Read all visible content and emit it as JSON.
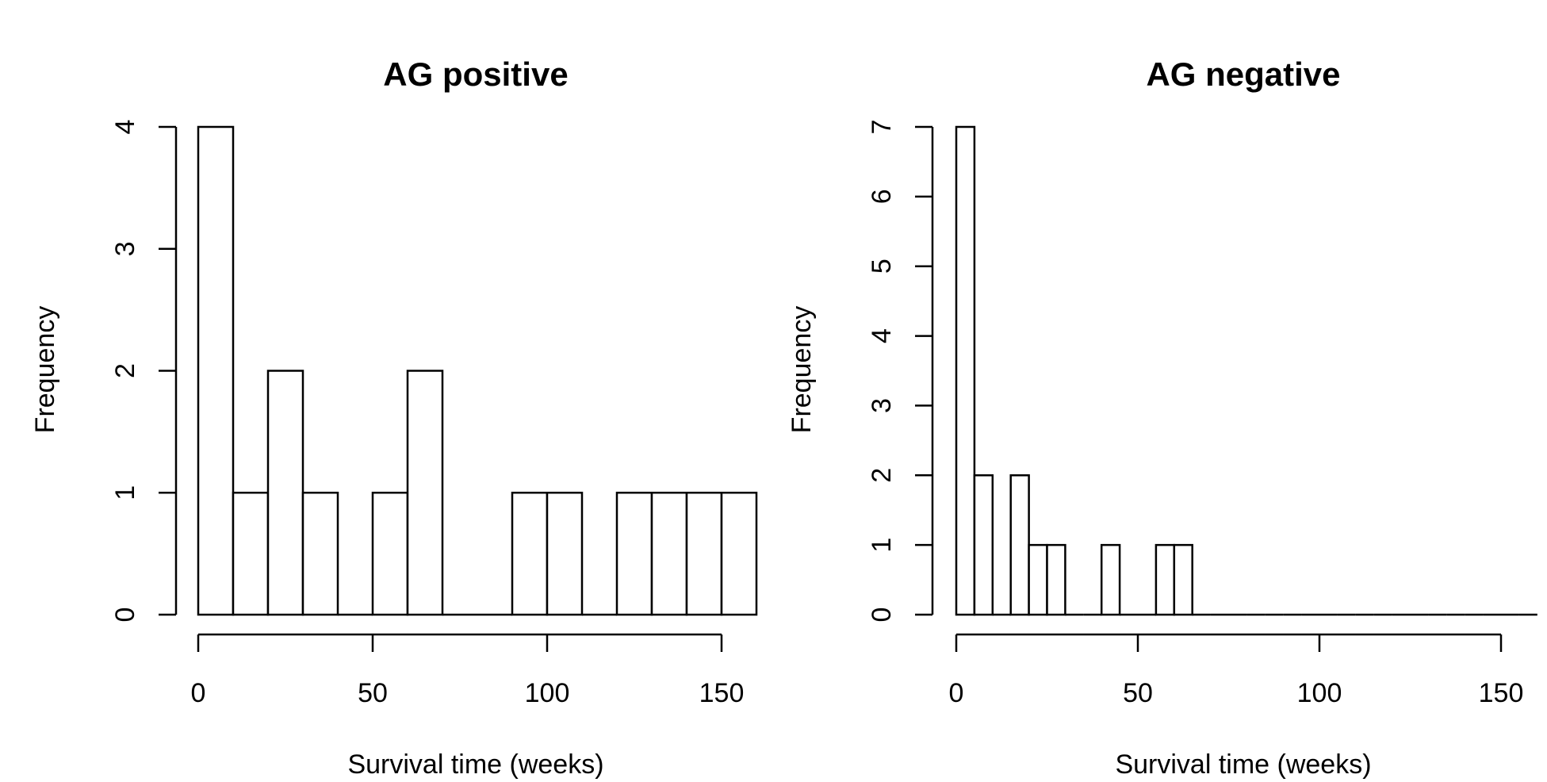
{
  "chart_data": [
    {
      "type": "bar",
      "title": "AG positive",
      "xlabel": "Survival time (weeks)",
      "ylabel": "Frequency",
      "bin_width": 10,
      "bins": [
        {
          "start": 0,
          "end": 10,
          "count": 4
        },
        {
          "start": 10,
          "end": 20,
          "count": 1
        },
        {
          "start": 20,
          "end": 30,
          "count": 2
        },
        {
          "start": 30,
          "end": 40,
          "count": 1
        },
        {
          "start": 40,
          "end": 50,
          "count": 0
        },
        {
          "start": 50,
          "end": 60,
          "count": 1
        },
        {
          "start": 60,
          "end": 70,
          "count": 2
        },
        {
          "start": 70,
          "end": 80,
          "count": 0
        },
        {
          "start": 80,
          "end": 90,
          "count": 0
        },
        {
          "start": 90,
          "end": 100,
          "count": 1
        },
        {
          "start": 100,
          "end": 110,
          "count": 1
        },
        {
          "start": 110,
          "end": 120,
          "count": 0
        },
        {
          "start": 120,
          "end": 130,
          "count": 1
        },
        {
          "start": 130,
          "end": 140,
          "count": 1
        },
        {
          "start": 140,
          "end": 150,
          "count": 1
        },
        {
          "start": 150,
          "end": 160,
          "count": 1
        }
      ],
      "xlim": [
        0,
        160
      ],
      "ylim": [
        0,
        4
      ],
      "xticks": [
        0,
        50,
        100,
        150
      ],
      "yticks": [
        0,
        1,
        2,
        3,
        4
      ],
      "xtick_labels": [
        "0",
        "50",
        "100",
        "150"
      ],
      "ytick_labels": [
        "0",
        "1",
        "2",
        "3",
        "4"
      ],
      "grid": false
    },
    {
      "type": "bar",
      "title": "AG negative",
      "xlabel": "Survival time (weeks)",
      "ylabel": "Frequency",
      "bin_width": 5,
      "bins": [
        {
          "start": 0,
          "end": 5,
          "count": 7
        },
        {
          "start": 5,
          "end": 10,
          "count": 2
        },
        {
          "start": 10,
          "end": 15,
          "count": 0
        },
        {
          "start": 15,
          "end": 20,
          "count": 2
        },
        {
          "start": 20,
          "end": 25,
          "count": 1
        },
        {
          "start": 25,
          "end": 30,
          "count": 1
        },
        {
          "start": 30,
          "end": 35,
          "count": 0
        },
        {
          "start": 35,
          "end": 40,
          "count": 0
        },
        {
          "start": 40,
          "end": 45,
          "count": 1
        },
        {
          "start": 45,
          "end": 50,
          "count": 0
        },
        {
          "start": 50,
          "end": 55,
          "count": 0
        },
        {
          "start": 55,
          "end": 60,
          "count": 1
        },
        {
          "start": 60,
          "end": 65,
          "count": 1
        },
        {
          "start": 65,
          "end": 70,
          "count": 0
        },
        {
          "start": 70,
          "end": 75,
          "count": 0
        },
        {
          "start": 75,
          "end": 80,
          "count": 0
        },
        {
          "start": 80,
          "end": 85,
          "count": 0
        },
        {
          "start": 85,
          "end": 90,
          "count": 0
        },
        {
          "start": 90,
          "end": 95,
          "count": 0
        },
        {
          "start": 95,
          "end": 100,
          "count": 0
        },
        {
          "start": 100,
          "end": 105,
          "count": 0
        },
        {
          "start": 105,
          "end": 110,
          "count": 0
        },
        {
          "start": 110,
          "end": 115,
          "count": 0
        },
        {
          "start": 115,
          "end": 120,
          "count": 0
        },
        {
          "start": 120,
          "end": 125,
          "count": 0
        },
        {
          "start": 125,
          "end": 130,
          "count": 0
        },
        {
          "start": 130,
          "end": 135,
          "count": 0
        },
        {
          "start": 135,
          "end": 140,
          "count": 0
        },
        {
          "start": 140,
          "end": 145,
          "count": 0
        },
        {
          "start": 145,
          "end": 150,
          "count": 0
        },
        {
          "start": 150,
          "end": 155,
          "count": 0
        },
        {
          "start": 155,
          "end": 160,
          "count": 0
        }
      ],
      "xlim": [
        0,
        160
      ],
      "ylim": [
        0,
        7
      ],
      "xticks": [
        0,
        50,
        100,
        150
      ],
      "yticks": [
        0,
        1,
        2,
        3,
        4,
        5,
        6,
        7
      ],
      "xtick_labels": [
        "0",
        "50",
        "100",
        "150"
      ],
      "ytick_labels": [
        "0",
        "1",
        "2",
        "3",
        "4",
        "5",
        "6",
        "7"
      ],
      "grid": false
    }
  ]
}
